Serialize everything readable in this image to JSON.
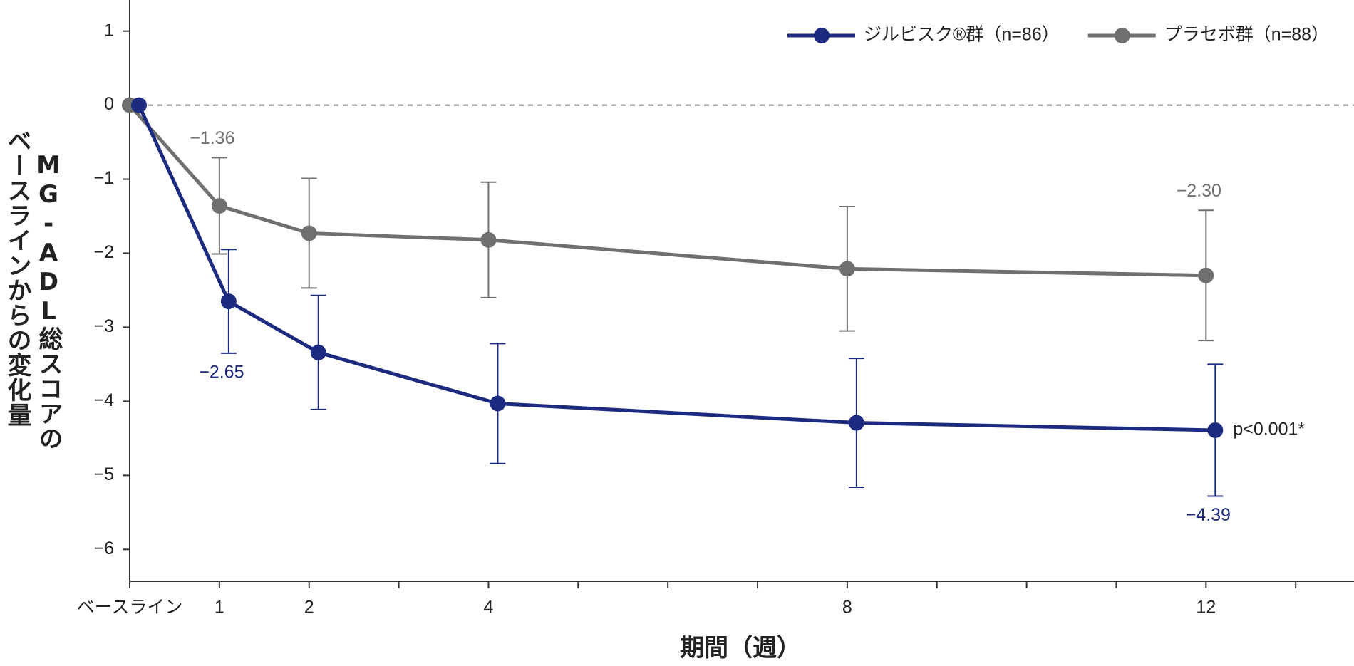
{
  "chart_data": {
    "type": "line",
    "ylabel": [
      "MG-ADL総スコアの",
      "ベースラインからの変化量"
    ],
    "xlabel": "期間（週）",
    "x": [
      0,
      1,
      2,
      4,
      8,
      12
    ],
    "series": [
      {
        "name": "ジルビスク®群（n=86）",
        "color": "#1c2a80",
        "values": [
          0,
          -2.65,
          -3.34,
          -4.03,
          -4.29,
          -4.39
        ],
        "errors": [
          null,
          0.7,
          0.77,
          0.81,
          0.87,
          0.89
        ],
        "value_labels": [
          null,
          "−2.65",
          null,
          null,
          null,
          "−4.39"
        ]
      },
      {
        "name": "プラセボ群（n=88）",
        "color": "#707070",
        "values": [
          0,
          -1.36,
          -1.73,
          -1.82,
          -2.21,
          -2.3
        ],
        "errors": [
          null,
          0.65,
          0.74,
          0.78,
          0.84,
          0.88
        ],
        "value_labels": [
          null,
          "−1.36",
          null,
          null,
          null,
          "−2.30"
        ]
      }
    ],
    "annotation": "p<0.001*",
    "reference_line": 0,
    "xlim": [
      0,
      13.65
    ],
    "ylim": [
      -6.43,
      1.42
    ],
    "xticks": [
      {
        "value": 0,
        "label": "ベースライン"
      },
      1,
      2,
      4,
      8,
      12
    ],
    "minor_xticks": [
      3,
      5,
      6,
      7,
      9,
      10,
      11,
      13
    ],
    "yticks": [
      {
        "value": -6,
        "label": "−6"
      },
      {
        "value": -5,
        "label": "−5"
      },
      {
        "value": -4,
        "label": "−4"
      },
      {
        "value": -3,
        "label": "−3"
      },
      {
        "value": -2,
        "label": "−2"
      },
      {
        "value": -1,
        "label": "−1"
      },
      0,
      1
    ]
  }
}
